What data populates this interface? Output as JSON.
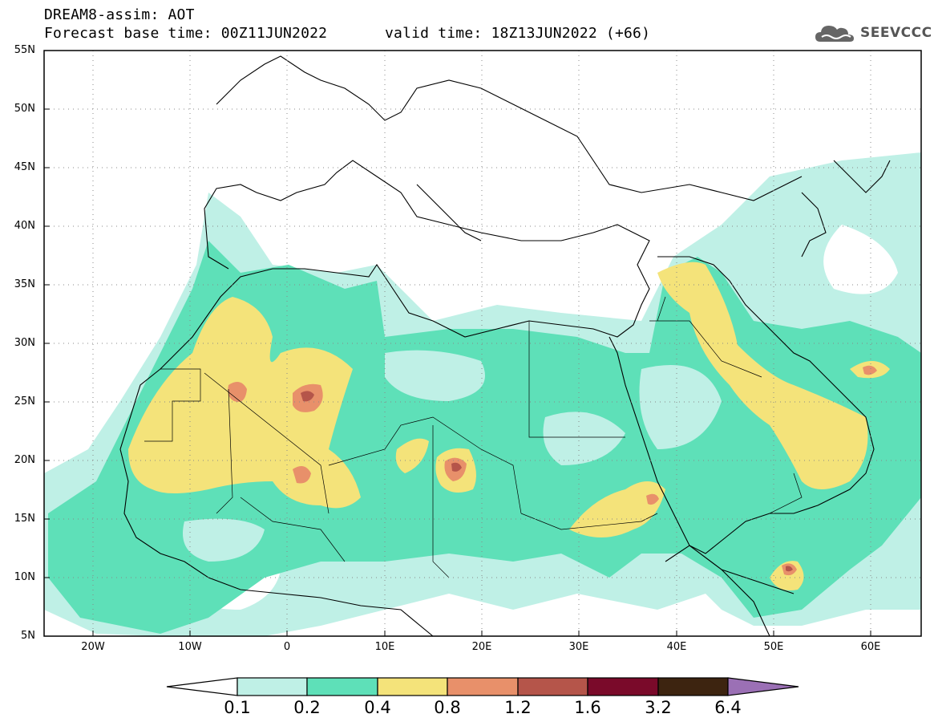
{
  "header": {
    "title_line1": "DREAM8-assim: AOT",
    "base_time": "Forecast base time: 00Z11JUN2022",
    "valid_time": "valid time: 18Z13JUN2022 (+66)"
  },
  "logo": {
    "text": "SEEVCCC",
    "icon": "cloud-icon"
  },
  "map": {
    "projection": "lat-lon",
    "lon_range": [
      -25,
      65
    ],
    "lat_range": [
      5,
      55
    ],
    "lat_labels": [
      "55N",
      "50N",
      "45N",
      "40N",
      "35N",
      "30N",
      "25N",
      "20N",
      "15N",
      "10N",
      "5N"
    ],
    "lon_labels": [
      "20W",
      "10W",
      "0",
      "10E",
      "20E",
      "30E",
      "40E",
      "50E",
      "60E"
    ],
    "gridlines": "dotted"
  },
  "colorbar": {
    "labels": [
      "0.1",
      "0.2",
      "0.4",
      "0.8",
      "1.2",
      "1.6",
      "3.2",
      "6.4"
    ],
    "colors": [
      "#ffffff",
      "#bff0e6",
      "#5ee0b8",
      "#f4e37a",
      "#e8906a",
      "#b5554a",
      "#7a0a2a",
      "#3d2410",
      "#9b70b5"
    ]
  }
}
